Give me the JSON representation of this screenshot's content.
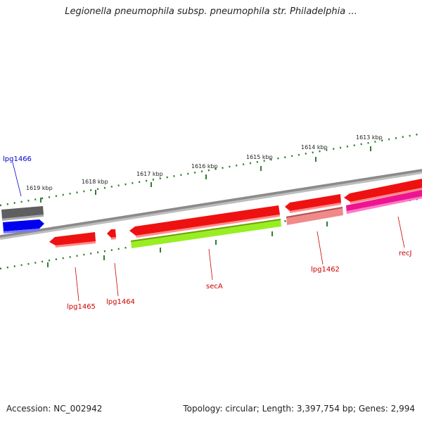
{
  "header": {
    "title": "Legionella pneumophila subsp. pneumophila str. Philadelphia ..."
  },
  "footer": {
    "accession": "Accession: NC_002942",
    "topology": "Topology: circular; Length: 3,397,754 bp; Genes: 2,994"
  },
  "map": {
    "colors": {
      "backbone": "#8a8a8a",
      "tick": "#2e7d2e",
      "gene_red": "#ee1111",
      "gene_label_red": "#cc0000",
      "gene_label_blue": "#0000cc"
    },
    "tick_labels": [
      "1619 kbp",
      "1618 kbp",
      "1617 kbp",
      "1616 kbp",
      "1615 kbp",
      "1614 kbp",
      "1613 kbp"
    ],
    "genes": [
      {
        "label": "lpg1466",
        "color": "#0000ee"
      },
      {
        "label": "lpg1465",
        "color": "#ee1111"
      },
      {
        "label": "lpg1464",
        "color": "#ee1111"
      },
      {
        "label": "secA",
        "color": "#ee1111"
      },
      {
        "label": "lpg1462",
        "color": "#ee1111"
      },
      {
        "label": "recJ",
        "color": "#ee1111"
      }
    ]
  }
}
